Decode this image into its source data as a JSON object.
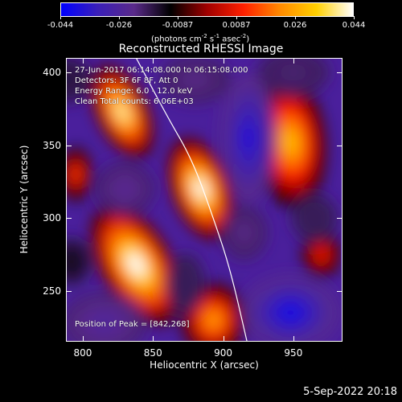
{
  "colorbar": {
    "ticks": [
      "-0.044",
      "-0.026",
      "-0.0087",
      "0.0087",
      "0.026",
      "0.044"
    ],
    "units_prefix": "(photons cm",
    "units_exp1": "-2",
    "units_mid": " s",
    "units_exp2": "-1",
    "units_mid2": " asec",
    "units_exp3": "-2",
    "units_suffix": ")",
    "colors": [
      "#0000ff",
      "#3a1fb8",
      "#5a2a8a",
      "#000000",
      "#a00000",
      "#ff2000",
      "#ff8a00",
      "#ffd000",
      "#ffffff"
    ]
  },
  "plot": {
    "title": "Reconstructed RHESSI Image",
    "info_lines": [
      "27-Jun-2017 06:14:08.000 to 06:15:08.000",
      "Detectors: 3F 6F 8F, Att 0",
      "Energy Range: 6.0 - 12.0 keV",
      "Clean      Total counts: 6.06E+03"
    ],
    "peak_text": "Position of Peak = [842,268]",
    "footer_date": "5-Sep-2022 20:18"
  },
  "chart_data": {
    "type": "heatmap",
    "title": "Reconstructed RHESSI Image",
    "xlabel": "Heliocentric X (arcsec)",
    "ylabel": "Heliocentric Y (arcsec)",
    "xlim": [
      788,
      985
    ],
    "ylim": [
      215,
      410
    ],
    "xticks": [
      800,
      850,
      900,
      950
    ],
    "yticks": [
      250,
      300,
      350,
      400
    ],
    "colorbar_range": [
      -0.044,
      0.044
    ],
    "peak_position": [
      842,
      268
    ],
    "limb_curve": [
      [
        838,
        410
      ],
      [
        860,
        370
      ],
      [
        878,
        340
      ],
      [
        893,
        300
      ],
      [
        905,
        265
      ],
      [
        917,
        215
      ]
    ],
    "sources": [
      {
        "x": 828,
        "y": 373,
        "value": 0.04,
        "rx": 16,
        "ry": 30,
        "angle": -25
      },
      {
        "x": 884,
        "y": 320,
        "value": 0.044,
        "rx": 18,
        "ry": 32,
        "angle": -20
      },
      {
        "x": 838,
        "y": 268,
        "value": 0.044,
        "rx": 22,
        "ry": 40,
        "angle": -30
      },
      {
        "x": 948,
        "y": 352,
        "value": 0.03,
        "rx": 22,
        "ry": 40,
        "angle": -5
      },
      {
        "x": 893,
        "y": 230,
        "value": 0.026,
        "rx": 20,
        "ry": 22,
        "angle": 0
      },
      {
        "x": 795,
        "y": 330,
        "value": 0.015,
        "rx": 10,
        "ry": 16,
        "angle": 0
      },
      {
        "x": 970,
        "y": 275,
        "value": 0.012,
        "rx": 12,
        "ry": 14,
        "angle": 0
      },
      {
        "x": 830,
        "y": 320,
        "value": -0.024,
        "rx": 18,
        "ry": 16,
        "angle": 0
      },
      {
        "x": 918,
        "y": 355,
        "value": -0.038,
        "rx": 17,
        "ry": 38,
        "angle": 0
      },
      {
        "x": 880,
        "y": 395,
        "value": -0.022,
        "rx": 22,
        "ry": 14,
        "angle": 0
      },
      {
        "x": 948,
        "y": 235,
        "value": -0.04,
        "rx": 30,
        "ry": 22,
        "angle": 0
      },
      {
        "x": 815,
        "y": 228,
        "value": -0.026,
        "rx": 26,
        "ry": 18,
        "angle": 0
      },
      {
        "x": 873,
        "y": 255,
        "value": -0.018,
        "rx": 12,
        "ry": 18,
        "angle": 0
      },
      {
        "x": 915,
        "y": 290,
        "value": -0.022,
        "rx": 14,
        "ry": 16,
        "angle": 0
      },
      {
        "x": 965,
        "y": 300,
        "value": -0.018,
        "rx": 14,
        "ry": 14,
        "angle": 0
      },
      {
        "x": 950,
        "y": 400,
        "value": -0.02,
        "rx": 22,
        "ry": 14,
        "angle": 0
      },
      {
        "x": 790,
        "y": 395,
        "value": -0.016,
        "rx": 14,
        "ry": 14,
        "angle": 0
      },
      {
        "x": 792,
        "y": 270,
        "value": -0.012,
        "rx": 12,
        "ry": 14,
        "angle": 0
      }
    ]
  }
}
